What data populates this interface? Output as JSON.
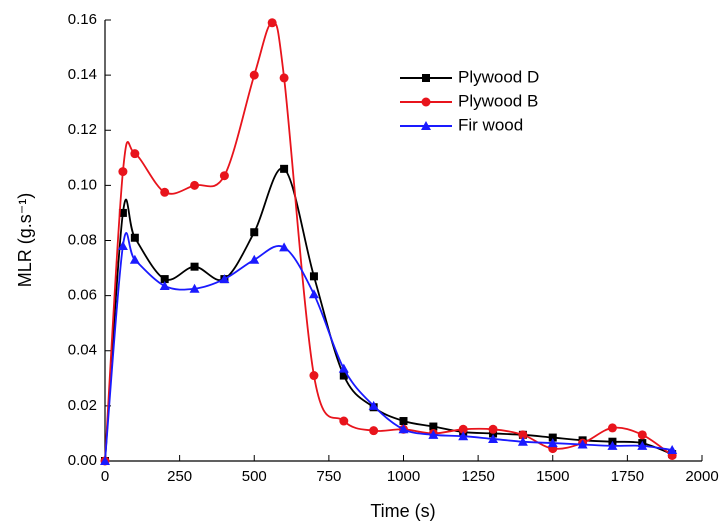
{
  "chart_data": {
    "type": "line",
    "xlabel": "Time (s)",
    "ylabel": "MLR (g.s⁻¹)",
    "xlim": [
      0,
      2000
    ],
    "xticks": [
      0,
      250,
      500,
      750,
      1000,
      1250,
      1500,
      1750,
      2000
    ],
    "ylim": [
      0,
      0.16
    ],
    "yticks": [
      {
        "value": 0,
        "label": "0.00"
      },
      {
        "value": 0.02,
        "label": "0.02"
      },
      {
        "value": 0.04,
        "label": "0.04"
      },
      {
        "value": 0.06,
        "label": "0.06"
      },
      {
        "value": 0.08,
        "label": "0.08"
      },
      {
        "value": 0.1,
        "label": "0.10"
      },
      {
        "value": 0.12,
        "label": "0.12"
      },
      {
        "value": 0.14,
        "label": "0.14"
      },
      {
        "value": 0.16,
        "label": "0.16"
      }
    ],
    "legend": "top-right",
    "series": [
      {
        "name": "Plywood D",
        "color": "#000000",
        "marker": "square",
        "x": [
          0,
          60,
          100,
          200,
          300,
          400,
          500,
          600,
          700,
          800,
          900,
          1000,
          1100,
          1200,
          1300,
          1400,
          1500,
          1600,
          1700,
          1800,
          1900
        ],
        "values": [
          0,
          0.09,
          0.081,
          0.066,
          0.0705,
          0.066,
          0.083,
          0.106,
          0.067,
          0.031,
          0.0195,
          0.0145,
          0.0125,
          0.0105,
          0.01,
          0.0095,
          0.0085,
          0.0075,
          0.007,
          0.0065,
          0.0025
        ]
      },
      {
        "name": "Plywood B",
        "color": "#e8141c",
        "marker": "circle",
        "x": [
          0,
          60,
          100,
          200,
          300,
          400,
          500,
          560,
          600,
          700,
          800,
          900,
          1000,
          1100,
          1200,
          1300,
          1400,
          1500,
          1600,
          1700,
          1800,
          1900
        ],
        "values": [
          0,
          0.105,
          0.1115,
          0.0975,
          0.1,
          0.1035,
          0.14,
          0.159,
          0.139,
          0.031,
          0.0145,
          0.011,
          0.0115,
          0.01,
          0.0115,
          0.0115,
          0.0095,
          0.0045,
          0.0065,
          0.012,
          0.0095,
          0.002
        ]
      },
      {
        "name": "Fir wood",
        "color": "#1a1aff",
        "marker": "triangle",
        "x": [
          0,
          60,
          100,
          200,
          300,
          400,
          500,
          600,
          700,
          800,
          900,
          1000,
          1100,
          1200,
          1300,
          1400,
          1500,
          1600,
          1700,
          1800,
          1900
        ],
        "values": [
          0,
          0.078,
          0.073,
          0.0635,
          0.0625,
          0.066,
          0.073,
          0.0775,
          0.0605,
          0.0335,
          0.02,
          0.0115,
          0.0095,
          0.009,
          0.008,
          0.007,
          0.0065,
          0.006,
          0.0055,
          0.0055,
          0.004
        ]
      }
    ]
  }
}
